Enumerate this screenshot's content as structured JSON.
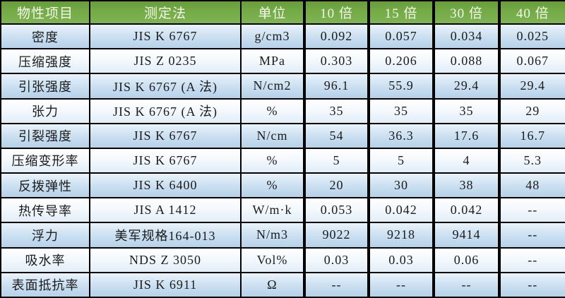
{
  "colors": {
    "header_green": "#74ab47",
    "header_text": "#f3f8ea",
    "row_blue_top": "#eaf3fb",
    "row_blue_bottom": "#b5d1e9",
    "row_white_top": "#ffffff",
    "row_white_bottom": "#e2edf7",
    "border_black": "#030303",
    "body_text": "#1b1b1d"
  },
  "table": {
    "header": [
      "物性项目",
      "测定法",
      "单位",
      "10 倍",
      "15 倍",
      "30 倍",
      "40 倍"
    ],
    "rows": [
      {
        "cells": [
          "密度",
          "JIS K 6767",
          "g/cm3",
          "0.092",
          "0.057",
          "0.034",
          "0.025"
        ]
      },
      {
        "cells": [
          "压缩强度",
          "JIS Z 0235",
          "MPa",
          "0.303",
          "0.206",
          "0.088",
          "0.067"
        ]
      },
      {
        "cells": [
          "引张强度",
          "JIS K 6767 (A 法)",
          "N/cm2",
          "96.1",
          "55.9",
          "29.4",
          "29.4"
        ]
      },
      {
        "cells": [
          "张力",
          "JIS K 6767 (A 法)",
          "%",
          "35",
          "35",
          "35",
          "29"
        ]
      },
      {
        "cells": [
          "引裂强度",
          "JIS K 6767",
          "N/cm",
          "54",
          "36.3",
          "17.6",
          "16.7"
        ]
      },
      {
        "cells": [
          "压缩变形率",
          "JIS K 6767",
          "%",
          "5",
          "5",
          "4",
          "5.3"
        ]
      },
      {
        "cells": [
          "反拨弹性",
          "JIS K 6400",
          "%",
          "20",
          "30",
          "38",
          "48"
        ]
      },
      {
        "cells": [
          "热传导率",
          "JIS A 1412",
          "W/m·k",
          "0.053",
          "0.042",
          "0.042",
          "--"
        ]
      },
      {
        "cells": [
          "浮力",
          "美军规格164-013",
          "N/m3",
          "9022",
          "9218",
          "9414",
          "--"
        ]
      },
      {
        "cells": [
          "吸水率",
          "NDS Z 3050",
          "Vol%",
          "0.03",
          "0.03",
          "0.06",
          "--"
        ]
      },
      {
        "cells": [
          "表面抵抗率",
          "JIS K 6911",
          "Ω",
          "--",
          "--",
          "--",
          "--"
        ]
      }
    ]
  }
}
